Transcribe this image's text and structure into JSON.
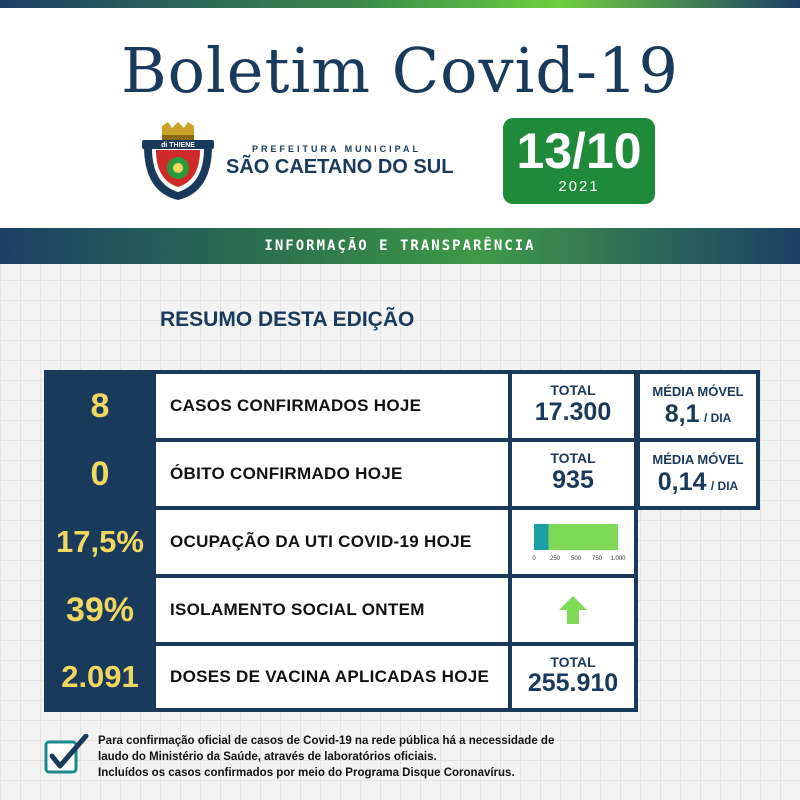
{
  "header": {
    "title": "Boletim Covid-19",
    "crest_banner": "di THIENE",
    "prefeitura_small": "PREFEITURA MUNICIPAL",
    "prefeitura_big": "SÃO CAETANO DO SUL",
    "date_day": "13/10",
    "date_year": "2021"
  },
  "band": {
    "text": "INFORMAÇÃO E TRANSPARÊNCIA"
  },
  "section_title": "RESUMO DESTA EDIÇÃO",
  "rows": [
    {
      "value": "8",
      "label": "CASOS CONFIRMADOS HOJE",
      "total_label": "TOTAL",
      "total_value": "17.300",
      "media_label": "MÉDIA MÓVEL",
      "media_value": "8,1",
      "media_unit": "/ DIA"
    },
    {
      "value": "0",
      "label": "ÓBITO CONFIRMADO HOJE",
      "total_label": "TOTAL",
      "total_value": "935",
      "media_label": "MÉDIA MÓVEL",
      "media_value": "0,14",
      "media_unit": "/ DIA"
    },
    {
      "value": "17,5%",
      "label": "OCUPAÇÃO DA UTI COVID-19 HOJE"
    },
    {
      "value": "39%",
      "label": "ISOLAMENTO SOCIAL ONTEM",
      "trend_icon": "arrow-up-icon"
    },
    {
      "value": "2.091",
      "label": "DOSES DE VACINA APLICADAS HOJE",
      "total_label": "TOTAL",
      "total_value": "255.910"
    }
  ],
  "chart_data": {
    "type": "bar",
    "orientation": "horizontal",
    "categories": [
      "UTI"
    ],
    "series": [
      {
        "values": [
          175
        ],
        "color": "#1aa0a0"
      },
      {
        "values": [
          825
        ],
        "color": "#7ed957"
      }
    ],
    "xticks": [
      "0",
      "250",
      "500",
      "750",
      "1.000"
    ],
    "xlim": [
      0,
      1000
    ],
    "grid": false
  },
  "footnote": [
    "Para confirmação oficial de casos de Covid-19 na rede pública há a necessidade de",
    "laudo do Ministério da Saúde, através de laboratórios oficiais.",
    "Incluídos os casos confirmados por meio do Programa Disque Coronavírus."
  ],
  "colors": {
    "navy": "#1a3a5c",
    "green": "#1f8a3a",
    "yellow": "#f0d860",
    "light_green": "#7ed957",
    "teal": "#1aa0a0"
  }
}
